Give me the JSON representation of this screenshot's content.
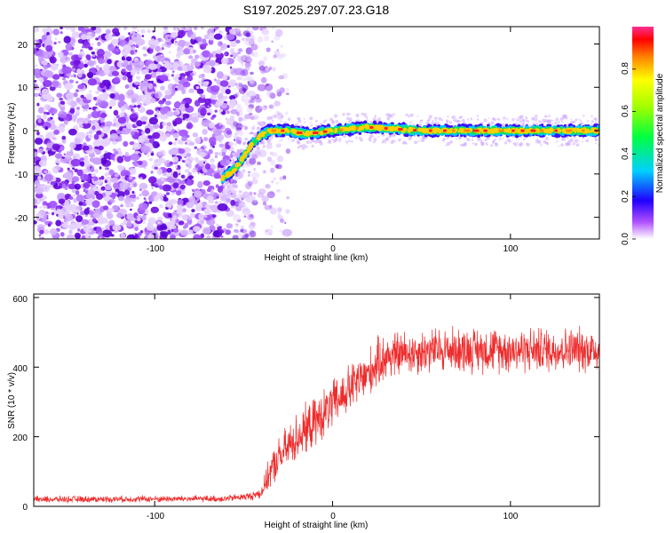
{
  "title": "S197.2025.297.07.23.G18",
  "chart_data": [
    {
      "type": "heatmap",
      "xlabel": "Height of straight line (km)",
      "ylabel": "Frequency (Hz)",
      "xlim": [
        -168,
        150
      ],
      "ylim": [
        -25,
        24
      ],
      "xticks": [
        -100,
        0,
        100
      ],
      "xtick_labels": [
        "-100",
        "0",
        "100"
      ],
      "yticks": [
        -20,
        -10,
        0,
        10,
        20
      ],
      "ytick_labels": [
        "-20",
        "-10",
        "0",
        "10",
        "20"
      ],
      "ridge": {
        "x": [
          -62,
          -55,
          -50,
          -45,
          -40,
          -35,
          -25,
          -15,
          0,
          20,
          50,
          100,
          150
        ],
        "freq": [
          -11,
          -9,
          -6,
          -3,
          -1,
          0,
          0,
          -0.8,
          0,
          0.8,
          0,
          0,
          0
        ]
      },
      "noise_region_x": [
        -168,
        -45
      ],
      "colorbar": {
        "label": "Normalized spectral amplitude",
        "range": [
          0,
          1
        ],
        "ticks": [
          0.0,
          0.2,
          0.4,
          0.6,
          0.8
        ],
        "tick_labels": [
          "0.0",
          "0.2",
          "0.4",
          "0.6",
          "0.8"
        ]
      }
    },
    {
      "type": "line",
      "xlabel": "Height of straight line (km)",
      "ylabel": "SNR (10 * v/v)",
      "xlim": [
        -168,
        150
      ],
      "ylim": [
        0,
        610
      ],
      "xticks": [
        -100,
        0,
        100
      ],
      "xtick_labels": [
        "-100",
        "0",
        "100"
      ],
      "yticks": [
        0,
        200,
        400,
        600
      ],
      "ytick_labels": [
        "0",
        "200",
        "400",
        "600"
      ],
      "series": [
        {
          "name": "SNR",
          "color": "#ee2c2c",
          "trend_x": [
            -168,
            -60,
            -45,
            -40,
            -35,
            -30,
            -20,
            -10,
            0,
            10,
            20,
            25,
            30,
            40,
            60,
            100,
            150
          ],
          "trend_y": [
            20,
            22,
            30,
            40,
            100,
            140,
            200,
            240,
            290,
            340,
            380,
            410,
            430,
            440,
            450,
            450,
            450
          ],
          "noise_amplitude": [
            8,
            8,
            10,
            15,
            40,
            50,
            60,
            60,
            60,
            60,
            60,
            60,
            60,
            55,
            55,
            55,
            55
          ]
        }
      ]
    }
  ]
}
